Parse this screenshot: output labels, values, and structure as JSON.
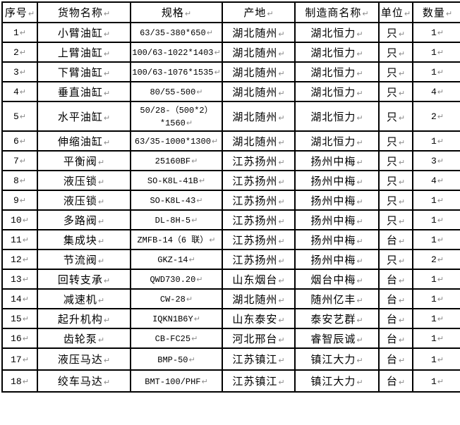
{
  "page": {
    "background": "#ffffff",
    "border_color": "#000000",
    "text_color": "#000000",
    "mark_color": "#8a8a8a",
    "cell_end_mark": "↵"
  },
  "table": {
    "headers": [
      "序号",
      "货物名称",
      "规格",
      "产地",
      "制造商名称",
      "单位",
      "数量"
    ],
    "rows": [
      {
        "no": "1",
        "name": "小臂油缸",
        "spec": "63/35-380*650",
        "origin": "湖北随州",
        "manufacturer": "湖北恒力",
        "unit": "只",
        "qty": "1"
      },
      {
        "no": "2",
        "name": "上臂油缸",
        "spec": "100/63-1022*1403",
        "origin": "湖北随州",
        "manufacturer": "湖北恒力",
        "unit": "只",
        "qty": "1"
      },
      {
        "no": "3",
        "name": "下臂油缸",
        "spec": "100/63-1076*1535",
        "origin": "湖北随州",
        "manufacturer": "湖北恒力",
        "unit": "只",
        "qty": "1"
      },
      {
        "no": "4",
        "name": "垂直油缸",
        "spec": "80/55-500",
        "origin": "湖北随州",
        "manufacturer": "湖北恒力",
        "unit": "只",
        "qty": "4"
      },
      {
        "no": "5",
        "name": "水平油缸",
        "spec": "50/28-（500*2）\n*1560",
        "origin": "湖北随州",
        "manufacturer": "湖北恒力",
        "unit": "只",
        "qty": "2"
      },
      {
        "no": "6",
        "name": "伸缩油缸",
        "spec": "63/35-1000*1300",
        "origin": "湖北随州",
        "manufacturer": "湖北恒力",
        "unit": "只",
        "qty": "1"
      },
      {
        "no": "7",
        "name": "平衡阀",
        "spec": "25160BF",
        "origin": "江苏扬州",
        "manufacturer": "扬州中梅",
        "unit": "只",
        "qty": "3"
      },
      {
        "no": "8",
        "name": "液压锁",
        "spec": "SO-K8L-41B",
        "origin": "江苏扬州",
        "manufacturer": "扬州中梅",
        "unit": "只",
        "qty": "4"
      },
      {
        "no": "9",
        "name": "液压锁",
        "spec": "SO-K8L-43",
        "origin": "江苏扬州",
        "manufacturer": "扬州中梅",
        "unit": "只",
        "qty": "1"
      },
      {
        "no": "10",
        "name": "多路阀",
        "spec": "DL-8H-5",
        "origin": "江苏扬州",
        "manufacturer": "扬州中梅",
        "unit": "只",
        "qty": "1"
      },
      {
        "no": "11",
        "name": "集成块",
        "spec": "ZMFB-14（6 联）",
        "origin": "江苏扬州",
        "manufacturer": "扬州中梅",
        "unit": "台",
        "qty": "1"
      },
      {
        "no": "12",
        "name": "节流阀",
        "spec": "GKZ-14",
        "origin": "江苏扬州",
        "manufacturer": "扬州中梅",
        "unit": "只",
        "qty": "2"
      },
      {
        "no": "13",
        "name": "回转支承",
        "spec": "QWD730.20",
        "origin": "山东烟台",
        "manufacturer": "烟台中梅",
        "unit": "台",
        "qty": "1"
      },
      {
        "no": "14",
        "name": "减速机",
        "spec": "CW-28",
        "origin": "湖北随州",
        "manufacturer": "随州亿丰",
        "unit": "台",
        "qty": "1"
      },
      {
        "no": "15",
        "name": "起升机构",
        "spec": "IQKN1B6Y",
        "origin": "山东泰安",
        "manufacturer": "泰安艺群",
        "unit": "台",
        "qty": "1"
      },
      {
        "no": "16",
        "name": "齿轮泵",
        "spec": "CB-FC25",
        "origin": "河北邢台",
        "manufacturer": "睿智辰诚",
        "unit": "台",
        "qty": "1"
      },
      {
        "no": "17",
        "name": "液压马达",
        "spec": "BMP-50",
        "origin": "江苏镇江",
        "manufacturer": "镇江大力",
        "unit": "台",
        "qty": "1"
      },
      {
        "no": "18",
        "name": "绞车马达",
        "spec": "BMT-100/PHF",
        "origin": "江苏镇江",
        "manufacturer": "镇江大力",
        "unit": "台",
        "qty": "1"
      }
    ]
  }
}
